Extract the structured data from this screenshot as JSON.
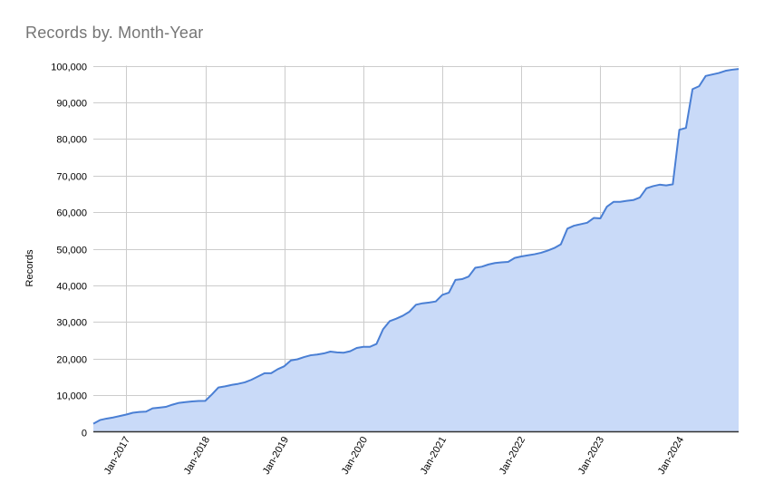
{
  "chart": {
    "title": "Records by. Month-Year",
    "ylabel": "Records",
    "colors": {
      "line": "#4a7fd4",
      "fill": "#c9daf8",
      "grid": "#cccccc",
      "axis": "#333333",
      "title": "#757575"
    }
  },
  "chart_data": {
    "type": "area",
    "title": "Records by. Month-Year",
    "xlabel": "",
    "ylabel": "Records",
    "ylim": [
      0,
      100000
    ],
    "yticks": [
      0,
      10000,
      20000,
      30000,
      40000,
      50000,
      60000,
      70000,
      80000,
      90000,
      100000
    ],
    "ytick_labels": [
      "0",
      "10,000",
      "20,000",
      "30,000",
      "40,000",
      "50,000",
      "60,000",
      "70,000",
      "80,000",
      "90,000",
      "100,000"
    ],
    "xtick_labels": [
      "Jan-2017",
      "Jan-2018",
      "Jan-2019",
      "Jan-2020",
      "Jan-2021",
      "Jan-2022",
      "Jan-2023",
      "Jan-2024"
    ],
    "grid": true,
    "legend": "none",
    "x_start": "Aug-2016",
    "x_end": "Oct-2024",
    "x_interval": "month",
    "series": [
      {
        "name": "Records",
        "values": [
          2200,
          3200,
          3600,
          3900,
          4300,
          4700,
          5200,
          5400,
          5500,
          6400,
          6600,
          6800,
          7400,
          7900,
          8100,
          8300,
          8400,
          8450,
          10200,
          12100,
          12400,
          12800,
          13100,
          13500,
          14200,
          15100,
          16000,
          16000,
          17100,
          17900,
          19500,
          19800,
          20400,
          20900,
          21100,
          21400,
          21900,
          21700,
          21600,
          22000,
          22900,
          23200,
          23200,
          24000,
          28000,
          30200,
          30900,
          31700,
          32800,
          34700,
          35100,
          35300,
          35600,
          37400,
          38000,
          41500,
          41700,
          42400,
          44800,
          45100,
          45700,
          46100,
          46300,
          46400,
          47500,
          47900,
          48200,
          48500,
          48900,
          49500,
          50200,
          51200,
          55500,
          56300,
          56700,
          57100,
          58400,
          58300,
          61500,
          62800,
          62800,
          63100,
          63300,
          64000,
          66500,
          67100,
          67500,
          67300,
          67600,
          82500,
          83000,
          93600,
          94400,
          97200,
          97600,
          98000,
          98600,
          98900,
          99100
        ]
      }
    ]
  }
}
